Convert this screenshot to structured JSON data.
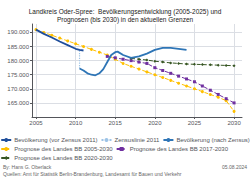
{
  "chart_data": {
    "type": "line",
    "title": "Landkreis Oder-Spree:  Bevölkerungsentwicklung (2005-2025) und\nPrognosen (bis 2030) in den aktuellen Grenzen",
    "xlim": [
      2004.5,
      2031
    ],
    "xticks": [
      2005,
      2010,
      2015,
      2020,
      2025,
      2030
    ],
    "ylim": [
      160000,
      193000
    ],
    "yticks": [
      {
        "value": 165000,
        "label": "165.000"
      },
      {
        "value": 170000,
        "label": "170.000"
      },
      {
        "value": 175000,
        "label": "175.000"
      },
      {
        "value": 180000,
        "label": "180.000"
      },
      {
        "value": 185000,
        "label": "185.000"
      },
      {
        "value": 190000,
        "label": "190.000"
      }
    ],
    "grid": true,
    "legend": "bottom",
    "series": [
      {
        "name": "Bevölkerung (vor Zensus 2011)",
        "color": "#1f4e9b",
        "line_style": "solid",
        "x": [
          2005,
          2006,
          2007,
          2008,
          2009,
          2010,
          2010.5,
          2011
        ],
        "values": [
          191000,
          189500,
          188200,
          186800,
          185500,
          184200,
          183800,
          183600
        ]
      },
      {
        "name": "Zensuslinie 2011",
        "color": "#9dc3e6",
        "line_style": "dotted",
        "x": [
          2010.5,
          2010.5
        ],
        "values": [
          177200,
          183800
        ]
      },
      {
        "name": "Bevölkerung (nach Zensus)",
        "color": "#2e75b6",
        "line_style": "solid",
        "x": [
          2010.5,
          2011,
          2011.5,
          2012,
          2012.5,
          2013,
          2013.5,
          2014,
          2014.5,
          2015,
          2015.3,
          2016,
          2017,
          2018,
          2019,
          2020,
          2021,
          2022,
          2023,
          2024
        ],
        "values": [
          177200,
          176500,
          175500,
          175000,
          174800,
          175500,
          177000,
          179500,
          182000,
          183000,
          183200,
          182000,
          181000,
          181500,
          182500,
          183800,
          184500,
          184500,
          184200,
          183800
        ]
      },
      {
        "name": "Prognose des Landes BB 2005-2030",
        "color": "#ffc000",
        "line_style": "dashed",
        "marker": "circle",
        "x": [
          2005,
          2006,
          2007,
          2008,
          2009,
          2010,
          2011,
          2012,
          2013,
          2014,
          2015,
          2016,
          2017,
          2018,
          2019,
          2020,
          2021,
          2022,
          2023,
          2024,
          2025,
          2026,
          2027,
          2028,
          2029,
          2030
        ],
        "values": [
          191000,
          190000,
          189000,
          188000,
          187000,
          186000,
          185000,
          184000,
          183000,
          182000,
          180500,
          179000,
          178000,
          177000,
          176000,
          175000,
          174000,
          173000,
          172000,
          171000,
          170000,
          169000,
          168000,
          167000,
          165800,
          162000
        ]
      },
      {
        "name": "Prognose des Landes BB 2017-2030",
        "color": "#7030a0",
        "line_style": "dashed",
        "marker": "square",
        "x": [
          2014,
          2015,
          2016,
          2017,
          2018,
          2019,
          2020,
          2021,
          2022,
          2023,
          2024,
          2025,
          2026,
          2027,
          2028,
          2029,
          2030
        ],
        "values": [
          181500,
          181000,
          180500,
          180000,
          179500,
          179000,
          177500,
          176500,
          175500,
          174500,
          173500,
          172500,
          171000,
          169500,
          168000,
          166500,
          165000
        ]
      },
      {
        "name": "Prognose des Landes BB 2020-2030",
        "color": "#375623",
        "line_style": "dashed",
        "marker": "diamond",
        "x": [
          2017,
          2018,
          2019,
          2020,
          2021,
          2022,
          2023,
          2024,
          2025,
          2026,
          2027,
          2028,
          2029,
          2030
        ],
        "values": [
          180800,
          180500,
          180200,
          179800,
          179500,
          179200,
          179000,
          178800,
          178700,
          178600,
          178500,
          178400,
          178300,
          178200
        ]
      }
    ],
    "footer_left": "By: Hans G. Oberlack",
    "footer_right": "Quellen: Amt für Statistik Berlin-Brandenburg, Landesamt für Bauen und Verkehr",
    "footer_date": "05.08.2024"
  }
}
